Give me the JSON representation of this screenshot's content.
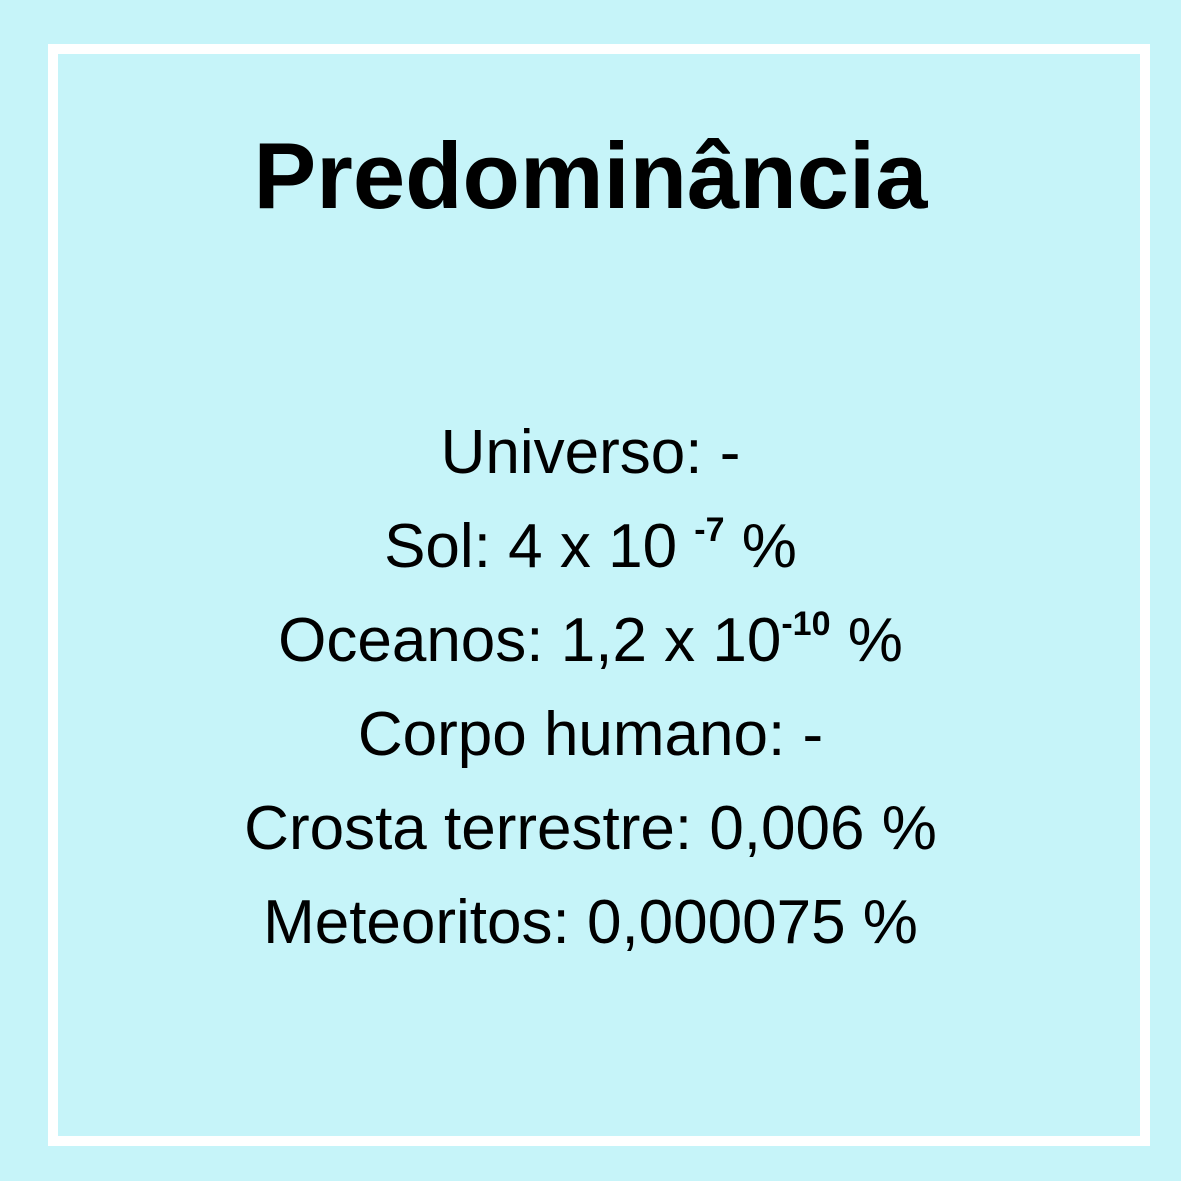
{
  "title": "Predominância",
  "items": [
    {
      "label": "Universo:",
      "value": "-"
    },
    {
      "label": "Sol:",
      "value_prefix": "4 x 10",
      "exponent": "-7",
      "unit": "%"
    },
    {
      "label": "Oceanos:",
      "value_prefix": "1,2 x 10",
      "exponent": "-10",
      "unit": "%"
    },
    {
      "label": "Corpo humano:",
      "value": "-"
    },
    {
      "label": "Crosta terrestre:",
      "value": "0,006 %"
    },
    {
      "label": "Meteoritos:",
      "value": "0,000075 %"
    }
  ],
  "colors": {
    "background": "#c6f4f9",
    "border": "#ffffff",
    "text": "#000000"
  }
}
